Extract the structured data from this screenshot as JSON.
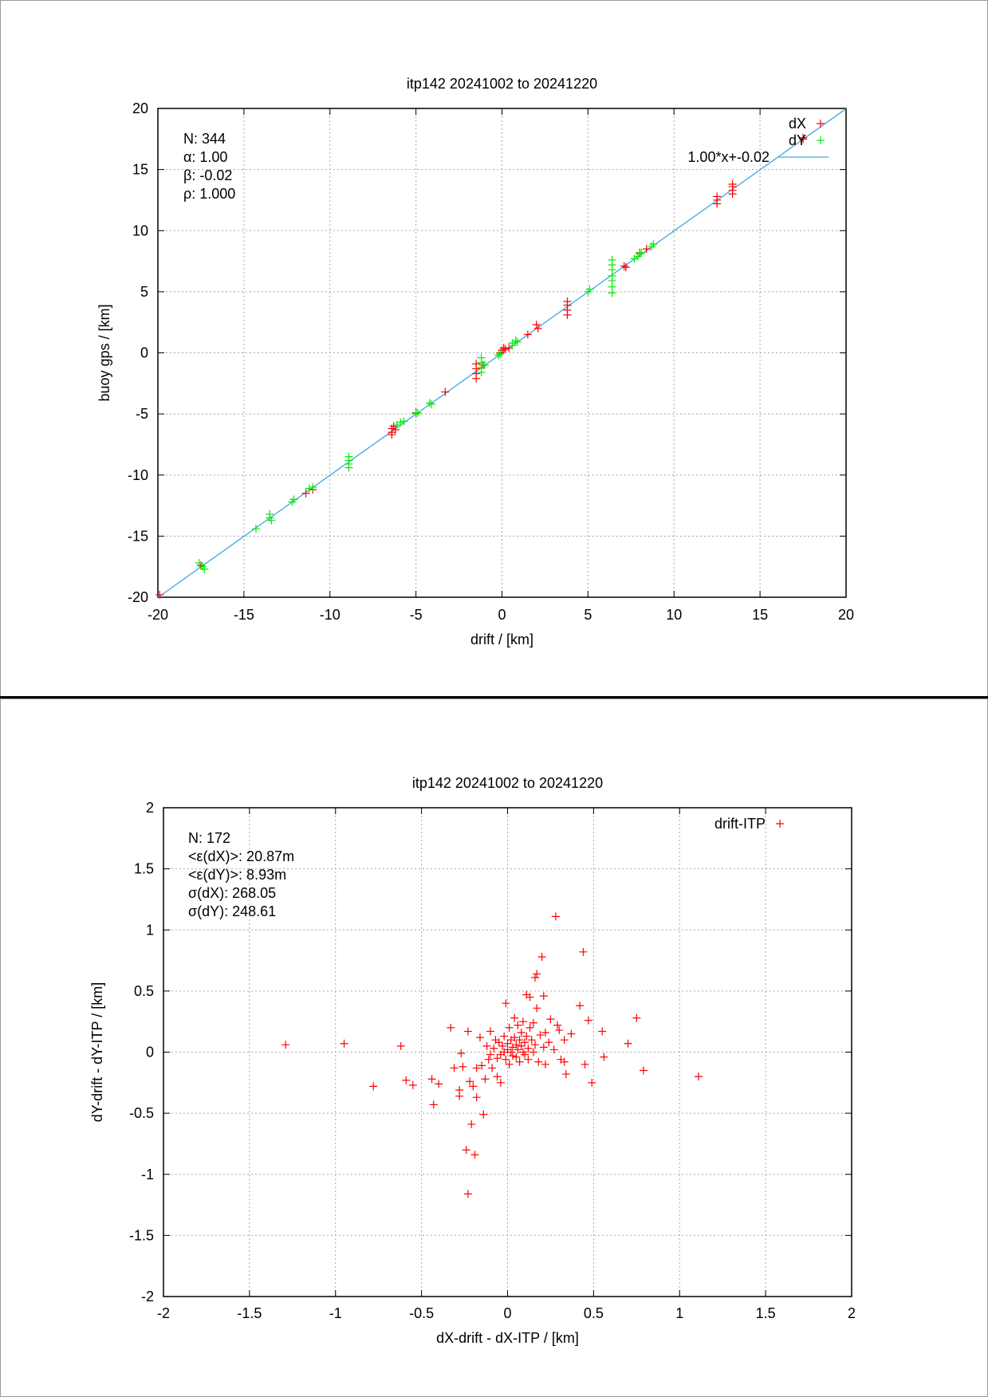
{
  "charts": [
    {
      "chart_data": {
        "type": "scatter",
        "title": "itp142 20241002 to 20241220",
        "xlabel": "drift / [km]",
        "ylabel": "buoy gps / [km]",
        "xlim": [
          -20,
          20
        ],
        "ylim": [
          -20,
          20
        ],
        "xticks": [
          "-20",
          "-15",
          "-10",
          "-5",
          "0",
          "5",
          "10",
          "15",
          "20"
        ],
        "yticks": [
          "-20",
          "-15",
          "-10",
          "-5",
          "0",
          "5",
          "10",
          "15",
          "20"
        ],
        "grid": true,
        "legend_position": "top-right",
        "stats": [
          "N: 344",
          "α: 1.00",
          "β: -0.02",
          "ρ: 1.000"
        ],
        "series": [
          {
            "name": "dX",
            "color": "#ff0000",
            "marker": "plus",
            "points": [
              [
                -19.9,
                -19.8
              ],
              [
                -17.5,
                -17.4
              ],
              [
                -11.4,
                -11.5
              ],
              [
                -11.0,
                -11.2
              ],
              [
                -6.4,
                -6.2
              ],
              [
                -6.4,
                -6.5
              ],
              [
                -6.4,
                -6.7
              ],
              [
                -6.3,
                -6.0
              ],
              [
                -6.2,
                -6.3
              ],
              [
                -5.0,
                -4.9
              ],
              [
                -3.3,
                -3.2
              ],
              [
                -1.5,
                -0.9
              ],
              [
                -1.5,
                -1.3
              ],
              [
                -1.5,
                -1.7
              ],
              [
                -1.5,
                -2.1
              ],
              [
                -1.1,
                -1.0
              ],
              [
                -0.1,
                0.0
              ],
              [
                0.0,
                0.2
              ],
              [
                0.1,
                0.4
              ],
              [
                0.2,
                0.3
              ],
              [
                0.4,
                0.4
              ],
              [
                1.5,
                1.5
              ],
              [
                2.0,
                2.3
              ],
              [
                2.1,
                2.0
              ],
              [
                3.8,
                3.1
              ],
              [
                3.8,
                3.5
              ],
              [
                3.8,
                3.9
              ],
              [
                3.8,
                4.2
              ],
              [
                7.1,
                7.1
              ],
              [
                7.2,
                7.0
              ],
              [
                8.0,
                8.2
              ],
              [
                8.4,
                8.5
              ],
              [
                12.5,
                12.2
              ],
              [
                12.5,
                12.5
              ],
              [
                12.5,
                12.8
              ],
              [
                13.4,
                13.0
              ],
              [
                13.4,
                13.3
              ],
              [
                13.4,
                13.6
              ],
              [
                13.4,
                13.8
              ],
              [
                17.5,
                17.5
              ],
              [
                17.5,
                17.6
              ]
            ]
          },
          {
            "name": "dY",
            "color": "#00ee00",
            "marker": "plus",
            "points": [
              [
                -17.6,
                -17.2
              ],
              [
                -17.4,
                -17.5
              ],
              [
                -17.3,
                -17.7
              ],
              [
                -14.3,
                -14.4
              ],
              [
                -13.5,
                -13.2
              ],
              [
                -13.5,
                -13.5
              ],
              [
                -13.4,
                -13.7
              ],
              [
                -12.1,
                -12.0
              ],
              [
                -12.2,
                -12.2
              ],
              [
                -11.0,
                -11.0
              ],
              [
                -11.2,
                -11.1
              ],
              [
                -8.9,
                -8.5
              ],
              [
                -8.9,
                -8.8
              ],
              [
                -8.9,
                -9.1
              ],
              [
                -8.9,
                -9.4
              ],
              [
                -6.1,
                -5.9
              ],
              [
                -5.9,
                -5.7
              ],
              [
                -5.7,
                -5.6
              ],
              [
                -5.0,
                -5.0
              ],
              [
                -4.9,
                -4.9
              ],
              [
                -4.2,
                -4.1
              ],
              [
                -4.1,
                -4.2
              ],
              [
                -1.2,
                -0.4
              ],
              [
                -1.2,
                -0.8
              ],
              [
                -1.2,
                -1.2
              ],
              [
                -1.2,
                -1.6
              ],
              [
                -1.0,
                -1.0
              ],
              [
                -0.2,
                -0.2
              ],
              [
                -0.1,
                -0.1
              ],
              [
                0.6,
                0.6
              ],
              [
                0.6,
                0.8
              ],
              [
                0.8,
                1.0
              ],
              [
                0.9,
                0.9
              ],
              [
                5.0,
                5.0
              ],
              [
                5.1,
                5.2
              ],
              [
                6.4,
                4.9
              ],
              [
                6.4,
                5.4
              ],
              [
                6.4,
                5.9
              ],
              [
                6.4,
                6.3
              ],
              [
                6.4,
                6.8
              ],
              [
                6.4,
                7.2
              ],
              [
                6.4,
                7.6
              ],
              [
                7.7,
                7.7
              ],
              [
                7.9,
                7.9
              ],
              [
                8.0,
                8.1
              ],
              [
                8.1,
                8.2
              ],
              [
                8.7,
                8.7
              ],
              [
                8.8,
                8.9
              ]
            ]
          }
        ],
        "fit": {
          "name": "1.00*x+-0.02",
          "color": "#3ea9e6",
          "slope": 1.0,
          "intercept": -0.02
        }
      }
    },
    {
      "chart_data": {
        "type": "scatter",
        "title": "itp142 20241002 to 20241220",
        "xlabel": "dX-drift - dX-ITP / [km]",
        "ylabel": "dY-drift - dY-ITP / [km]",
        "xlim": [
          -2,
          2
        ],
        "ylim": [
          -2,
          2
        ],
        "xticks": [
          "-2",
          "-1.5",
          "-1",
          "-0.5",
          "0",
          "0.5",
          "1",
          "1.5",
          "2"
        ],
        "yticks": [
          "-2",
          "-1.5",
          "-1",
          "-0.5",
          "0",
          "0.5",
          "1",
          "1.5",
          "2"
        ],
        "grid": true,
        "legend_position": "top-right",
        "stats": [
          "N: 172",
          "<ε(dX)>:  20.87m",
          "<ε(dY)>: 8.93m",
          "σ(dX):  268.05",
          "σ(dY):  248.61"
        ],
        "series": [
          {
            "name": "drift-ITP",
            "color": "#ff0000",
            "marker": "plus",
            "points": [
              [
                -1.29,
                0.06
              ],
              [
                -0.95,
                0.07
              ],
              [
                -0.78,
                -0.28
              ],
              [
                -0.62,
                0.05
              ],
              [
                -0.59,
                -0.23
              ],
              [
                -0.55,
                -0.27
              ],
              [
                -0.44,
                -0.22
              ],
              [
                -0.43,
                -0.43
              ],
              [
                -0.4,
                -0.26
              ],
              [
                -0.33,
                0.2
              ],
              [
                -0.31,
                -0.13
              ],
              [
                -0.28,
                -0.31
              ],
              [
                -0.28,
                -0.36
              ],
              [
                -0.27,
                -0.01
              ],
              [
                -0.26,
                -0.12
              ],
              [
                -0.24,
                -0.8
              ],
              [
                -0.23,
                -1.16
              ],
              [
                -0.23,
                0.17
              ],
              [
                -0.22,
                -0.24
              ],
              [
                -0.21,
                -0.59
              ],
              [
                -0.2,
                -0.28
              ],
              [
                -0.19,
                -0.84
              ],
              [
                -0.18,
                -0.13
              ],
              [
                -0.18,
                -0.37
              ],
              [
                -0.16,
                0.12
              ],
              [
                -0.15,
                -0.11
              ],
              [
                -0.14,
                -0.51
              ],
              [
                -0.13,
                -0.22
              ],
              [
                -0.12,
                0.05
              ],
              [
                -0.11,
                -0.06
              ],
              [
                -0.1,
                0.17
              ],
              [
                -0.1,
                -0.02
              ],
              [
                -0.09,
                -0.13
              ],
              [
                -0.08,
                0.03
              ],
              [
                -0.07,
                0.1
              ],
              [
                -0.06,
                -0.05
              ],
              [
                -0.06,
                -0.2
              ],
              [
                -0.05,
                0.08
              ],
              [
                -0.04,
                -0.02
              ],
              [
                -0.04,
                -0.25
              ],
              [
                -0.03,
                0.05
              ],
              [
                -0.02,
                0.0
              ],
              [
                -0.02,
                0.13
              ],
              [
                -0.01,
                0.4
              ],
              [
                -0.01,
                -0.06
              ],
              [
                0.0,
                0.07
              ],
              [
                0.0,
                0.02
              ],
              [
                0.01,
                0.2
              ],
              [
                0.01,
                -0.1
              ],
              [
                0.02,
                0.0
              ],
              [
                0.02,
                0.1
              ],
              [
                0.03,
                0.04
              ],
              [
                0.03,
                -0.03
              ],
              [
                0.04,
                0.28
              ],
              [
                0.04,
                0.12
              ],
              [
                0.05,
                0.06
              ],
              [
                0.05,
                -0.04
              ],
              [
                0.06,
                0.22
              ],
              [
                0.06,
                0.02
              ],
              [
                0.07,
                0.1
              ],
              [
                0.07,
                -0.08
              ],
              [
                0.08,
                0.05
              ],
              [
                0.08,
                0.16
              ],
              [
                0.09,
                0.25
              ],
              [
                0.09,
                0.0
              ],
              [
                0.1,
                0.08
              ],
              [
                0.1,
                -0.02
              ],
              [
                0.11,
                0.13
              ],
              [
                0.11,
                0.47
              ],
              [
                0.12,
                0.03
              ],
              [
                0.12,
                -0.06
              ],
              [
                0.13,
                0.2
              ],
              [
                0.13,
                0.45
              ],
              [
                0.14,
                0.1
              ],
              [
                0.15,
                0.0
              ],
              [
                0.15,
                0.24
              ],
              [
                0.16,
                0.61
              ],
              [
                0.16,
                0.06
              ],
              [
                0.17,
                0.64
              ],
              [
                0.17,
                0.36
              ],
              [
                0.18,
                -0.08
              ],
              [
                0.19,
                0.14
              ],
              [
                0.2,
                0.78
              ],
              [
                0.21,
                0.04
              ],
              [
                0.21,
                0.46
              ],
              [
                0.22,
                0.16
              ],
              [
                0.22,
                -0.1
              ],
              [
                0.24,
                0.08
              ],
              [
                0.25,
                0.27
              ],
              [
                0.27,
                0.02
              ],
              [
                0.28,
                1.11
              ],
              [
                0.29,
                0.22
              ],
              [
                0.3,
                0.18
              ],
              [
                0.31,
                -0.06
              ],
              [
                0.33,
                0.1
              ],
              [
                0.33,
                -0.08
              ],
              [
                0.34,
                -0.18
              ],
              [
                0.37,
                0.15
              ],
              [
                0.42,
                0.38
              ],
              [
                0.44,
                0.82
              ],
              [
                0.45,
                -0.1
              ],
              [
                0.47,
                0.26
              ],
              [
                0.49,
                -0.25
              ],
              [
                0.55,
                0.17
              ],
              [
                0.56,
                -0.04
              ],
              [
                0.7,
                0.07
              ],
              [
                0.75,
                0.28
              ],
              [
                0.79,
                -0.15
              ],
              [
                1.11,
                -0.2
              ]
            ]
          }
        ]
      }
    }
  ]
}
